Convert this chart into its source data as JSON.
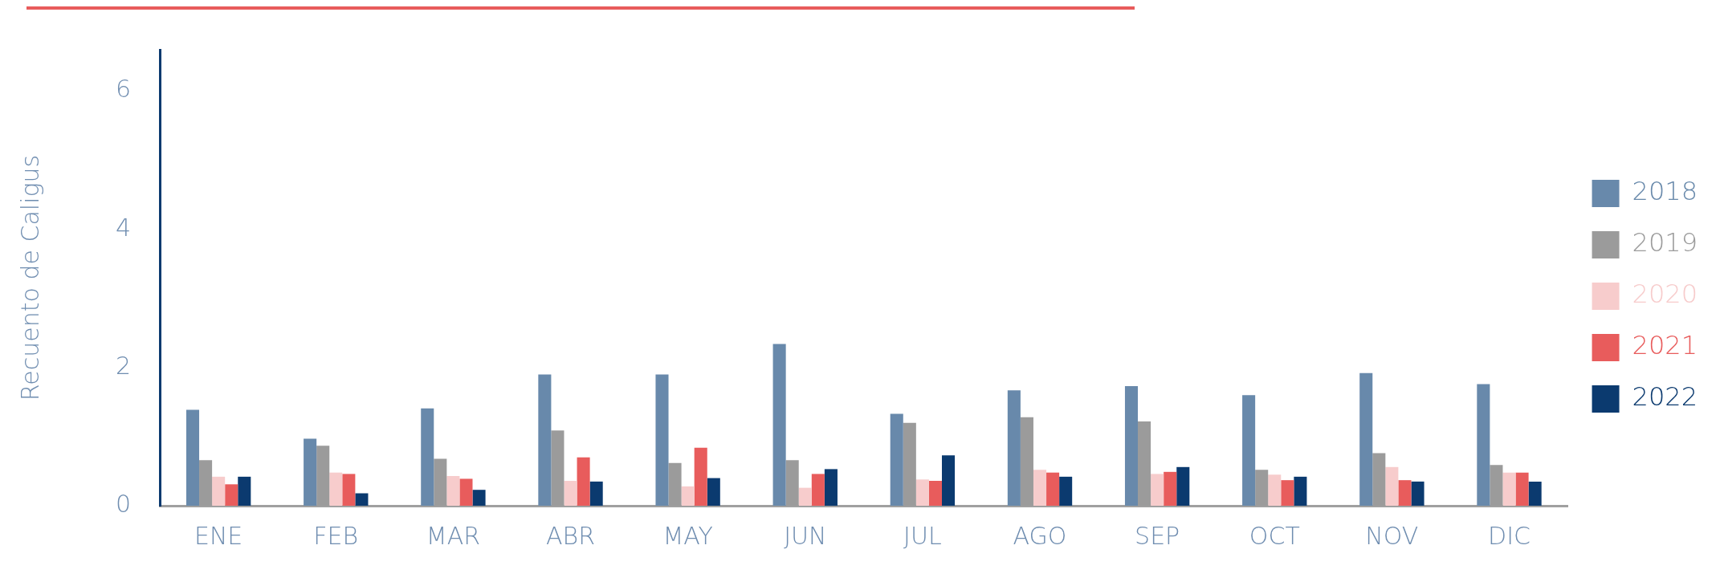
{
  "chart_data": {
    "type": "bar",
    "ylabel": "Recuento de Caligus",
    "categories": [
      "ENE",
      "FEB",
      "MAR",
      "ABR",
      "MAY",
      "JUN",
      "JUL",
      "AGO",
      "SEP",
      "OCT",
      "NOV",
      "DIC"
    ],
    "series": [
      {
        "name": "2018",
        "color": "#6889ab",
        "values": [
          1.39,
          0.97,
          1.41,
          1.9,
          1.9,
          2.34,
          1.33,
          1.67,
          1.73,
          1.6,
          1.92,
          1.76
        ]
      },
      {
        "name": "2019",
        "color": "#9b9b9b",
        "values": [
          0.66,
          0.87,
          0.68,
          1.09,
          0.62,
          0.66,
          1.2,
          1.28,
          1.22,
          0.52,
          0.76,
          0.59
        ]
      },
      {
        "name": "2020",
        "color": "#f7cccc",
        "values": [
          0.42,
          0.48,
          0.43,
          0.36,
          0.28,
          0.26,
          0.38,
          0.52,
          0.46,
          0.45,
          0.56,
          0.48
        ]
      },
      {
        "name": "2021",
        "color": "#e85c5c",
        "values": [
          0.31,
          0.46,
          0.39,
          0.7,
          0.84,
          0.46,
          0.36,
          0.48,
          0.49,
          0.37,
          0.37,
          0.48
        ]
      },
      {
        "name": "2022",
        "color": "#0b3a6f",
        "values": [
          0.42,
          0.18,
          0.23,
          0.35,
          0.4,
          0.53,
          0.73,
          0.42,
          0.56,
          0.42,
          0.35,
          0.35
        ]
      }
    ],
    "ylim": [
      0,
      6.6
    ],
    "yticks": [
      0,
      2,
      4,
      6
    ],
    "grid": false,
    "legend": "right"
  }
}
